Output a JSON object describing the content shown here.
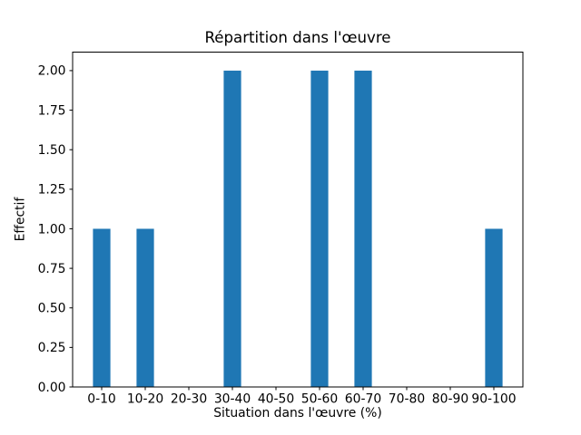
{
  "figure": {
    "background": "#ffffff"
  },
  "chart_data": {
    "type": "bar",
    "title": "Répartition dans l'œuvre",
    "xlabel": "Situation dans l'œuvre (%)",
    "ylabel": "Effectif",
    "categories": [
      "0-10",
      "10-20",
      "20-30",
      "30-40",
      "40-50",
      "50-60",
      "60-70",
      "70-80",
      "80-90",
      "90-100"
    ],
    "values": [
      1,
      1,
      0,
      2,
      0,
      2,
      2,
      0,
      0,
      1
    ],
    "bar_color": "#1f77b4",
    "bar_width": 0.4,
    "axis_color": "#000000",
    "tick_label_color": "#000000",
    "xlim": [
      -0.667,
      9.667
    ],
    "ylim": [
      0,
      2.117
    ],
    "yticks": [
      {
        "value": 0,
        "label": "0.00"
      },
      {
        "value": 0.25,
        "label": "0.25"
      },
      {
        "value": 0.5,
        "label": "0.50"
      },
      {
        "value": 0.75,
        "label": "0.75"
      },
      {
        "value": 1,
        "label": "1.00"
      },
      {
        "value": 1.25,
        "label": "1.25"
      },
      {
        "value": 1.5,
        "label": "1.50"
      },
      {
        "value": 1.75,
        "label": "1.75"
      },
      {
        "value": 2,
        "label": "2.00"
      }
    ],
    "grid": false,
    "legend": null
  }
}
